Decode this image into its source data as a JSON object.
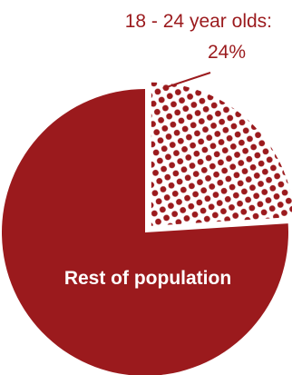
{
  "chart_data": {
    "type": "pie",
    "slices": [
      {
        "label": "18 - 24 year olds:",
        "value": 24,
        "value_label": "24%",
        "color": "#9b1a1d",
        "fill": "dotted"
      },
      {
        "label": "Rest of population",
        "value": 76,
        "color": "#9b1a1d",
        "fill": "solid"
      }
    ],
    "start_angle": "top",
    "direction": "clockwise",
    "exploded_slice": "18 - 24 year olds:"
  },
  "colors": {
    "slice": "#9b1a1d",
    "background": "#ffffff",
    "callout_text": "#9b1a1d",
    "inner_text": "#ffffff"
  }
}
